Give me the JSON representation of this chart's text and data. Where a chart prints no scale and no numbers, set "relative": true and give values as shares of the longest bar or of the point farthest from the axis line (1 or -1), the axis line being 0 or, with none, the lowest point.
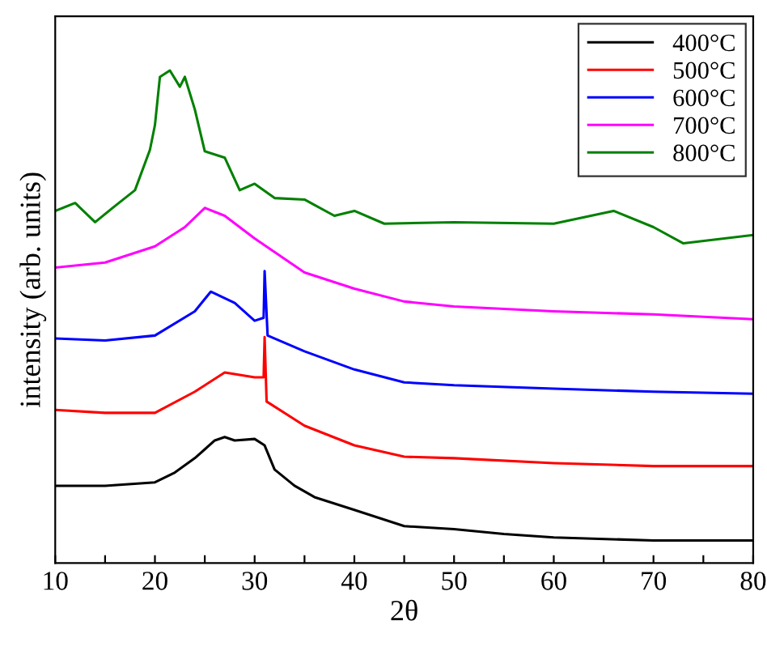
{
  "chart_data": {
    "type": "line",
    "relative": true,
    "xlabel": "2θ",
    "ylabel": "intensity (arb. units)",
    "xlim": [
      10,
      80
    ],
    "xticks": [
      10,
      {
        "value": 15,
        "label": null
      },
      20,
      {
        "value": 25,
        "label": null
      },
      30,
      {
        "value": 35,
        "label": null
      },
      40,
      {
        "value": 45,
        "label": null
      },
      50,
      {
        "value": 55,
        "label": null
      },
      60,
      {
        "value": 65,
        "label": null
      },
      70,
      {
        "value": 75,
        "label": null
      },
      80
    ],
    "tick_labels": "x",
    "grid": false,
    "legend": "top right",
    "marker": "none",
    "line_style": "solid",
    "series": [
      {
        "name": "400°C",
        "color": "#000000",
        "x": [
          10,
          15,
          20,
          22,
          24,
          26,
          27,
          28,
          30,
          31,
          32,
          34,
          36,
          40,
          45,
          50,
          55,
          60,
          70,
          80
        ],
        "values": [
          0.157,
          0.157,
          0.164,
          0.184,
          0.213,
          0.249,
          0.256,
          0.249,
          0.252,
          0.239,
          0.19,
          0.157,
          0.134,
          0.108,
          0.075,
          0.069,
          0.059,
          0.052,
          0.046,
          0.046
        ]
      },
      {
        "name": "500°C",
        "color": "#ff0000",
        "x": [
          10,
          15,
          20,
          24,
          27,
          30,
          30.9,
          31,
          31.2,
          35,
          40,
          45,
          50,
          60,
          70,
          80
        ],
        "values": [
          0.311,
          0.305,
          0.305,
          0.348,
          0.387,
          0.377,
          0.377,
          0.459,
          0.328,
          0.279,
          0.239,
          0.216,
          0.213,
          0.203,
          0.197,
          0.197
        ]
      },
      {
        "name": "600°C",
        "color": "#0000ff",
        "x": [
          10,
          15,
          20,
          24,
          25.6,
          28,
          30,
          30.9,
          31,
          31.3,
          35,
          40,
          45,
          50,
          60,
          70,
          80
        ],
        "values": [
          0.456,
          0.452,
          0.462,
          0.511,
          0.551,
          0.528,
          0.492,
          0.498,
          0.593,
          0.462,
          0.43,
          0.393,
          0.367,
          0.361,
          0.354,
          0.348,
          0.344
        ]
      },
      {
        "name": "700°C",
        "color": "#ff00ff",
        "x": [
          10,
          15,
          20,
          23,
          25,
          27,
          30,
          35,
          40,
          45,
          50,
          60,
          70,
          80
        ],
        "values": [
          0.6,
          0.61,
          0.643,
          0.682,
          0.721,
          0.705,
          0.659,
          0.59,
          0.557,
          0.531,
          0.521,
          0.511,
          0.505,
          0.495
        ]
      },
      {
        "name": "800°C",
        "color": "#008000",
        "x": [
          10,
          12,
          14,
          16,
          18,
          19.5,
          20,
          20.5,
          21.5,
          22.5,
          23,
          24,
          25,
          27,
          28.5,
          30,
          32,
          35,
          38,
          40,
          43,
          50,
          60,
          66,
          70,
          73,
          80
        ],
        "values": [
          0.715,
          0.731,
          0.692,
          0.725,
          0.757,
          0.839,
          0.889,
          0.987,
          1.0,
          0.967,
          0.987,
          0.921,
          0.836,
          0.823,
          0.757,
          0.77,
          0.741,
          0.738,
          0.705,
          0.715,
          0.689,
          0.692,
          0.689,
          0.715,
          0.682,
          0.649,
          0.666
        ]
      }
    ]
  }
}
